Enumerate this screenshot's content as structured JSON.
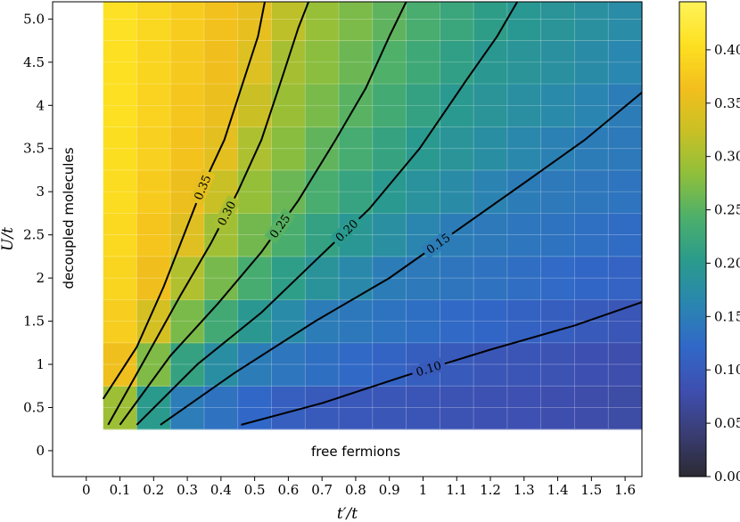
{
  "chart_data": {
    "type": "heatmap",
    "title": "",
    "xlabel": "t′/t",
    "ylabel": "U/t",
    "xlim": [
      -0.1,
      1.65
    ],
    "ylim": [
      -0.3,
      5.2
    ],
    "x_ticks": [
      "0",
      "0.1",
      "0.2",
      "0.3",
      "0.4",
      "0.5",
      "0.6",
      "0.7",
      "0.8",
      "0.9",
      "1",
      "1.1",
      "1.2",
      "1.3",
      "1.4",
      "1.5",
      "1.6"
    ],
    "y_ticks": [
      "0",
      "0.5",
      "1",
      "1.5",
      "2",
      "2.5",
      "3",
      "3.5",
      "4",
      "4.5",
      "5.0"
    ],
    "x_range": [
      0.05,
      1.65
    ],
    "y_range": [
      0.25,
      5.25
    ],
    "x_cells": 16,
    "y_cells": 10,
    "grid": true,
    "colorbar": {
      "min": 0.0,
      "max": 0.445,
      "ticks": [
        "0.00",
        "0.05",
        "0.10",
        "0.15",
        "0.20",
        "0.25",
        "0.30",
        "0.35",
        "0.40"
      ],
      "colormap": "cividis-viridis",
      "stops": [
        "#2b2a33",
        "#3a3d74",
        "#3e4fb0",
        "#3168c8",
        "#2a86b0",
        "#2a9b8c",
        "#4caf6b",
        "#8fbf3b",
        "#c9c025",
        "#f3bf1d",
        "#fde021",
        "#fff35a"
      ]
    },
    "contours": [
      {
        "level": "0.35",
        "points": [
          [
            0.05,
            0.6
          ],
          [
            0.15,
            1.2
          ],
          [
            0.23,
            1.9
          ],
          [
            0.29,
            2.5
          ],
          [
            0.35,
            3.1
          ],
          [
            0.41,
            3.6
          ],
          [
            0.46,
            4.2
          ],
          [
            0.51,
            4.8
          ],
          [
            0.53,
            5.25
          ]
        ]
      },
      {
        "level": "0.30",
        "points": [
          [
            0.065,
            0.3
          ],
          [
            0.18,
            1.1
          ],
          [
            0.28,
            1.8
          ],
          [
            0.37,
            2.4
          ],
          [
            0.45,
            3.0
          ],
          [
            0.52,
            3.6
          ],
          [
            0.58,
            4.3
          ],
          [
            0.63,
            4.9
          ],
          [
            0.66,
            5.25
          ]
        ]
      },
      {
        "level": "0.25",
        "points": [
          [
            0.1,
            0.3
          ],
          [
            0.25,
            1.1
          ],
          [
            0.39,
            1.7
          ],
          [
            0.52,
            2.3
          ],
          [
            0.63,
            2.9
          ],
          [
            0.74,
            3.6
          ],
          [
            0.83,
            4.2
          ],
          [
            0.9,
            4.8
          ],
          [
            0.95,
            5.25
          ]
        ]
      },
      {
        "level": "0.20",
        "points": [
          [
            0.15,
            0.3
          ],
          [
            0.33,
            1.0
          ],
          [
            0.52,
            1.6
          ],
          [
            0.68,
            2.2
          ],
          [
            0.84,
            2.8
          ],
          [
            0.99,
            3.5
          ],
          [
            1.13,
            4.3
          ],
          [
            1.22,
            4.8
          ],
          [
            1.28,
            5.25
          ]
        ]
      },
      {
        "level": "0.15",
        "points": [
          [
            0.22,
            0.3
          ],
          [
            0.44,
            0.9
          ],
          [
            0.68,
            1.5
          ],
          [
            0.9,
            2.0
          ],
          [
            1.1,
            2.55
          ],
          [
            1.3,
            3.1
          ],
          [
            1.48,
            3.6
          ],
          [
            1.65,
            4.15
          ]
        ]
      },
      {
        "level": "0.10",
        "points": [
          [
            0.46,
            0.3
          ],
          [
            0.7,
            0.55
          ],
          [
            0.95,
            0.87
          ],
          [
            1.2,
            1.17
          ],
          [
            1.45,
            1.45
          ],
          [
            1.65,
            1.72
          ]
        ]
      }
    ],
    "annotations": [
      "decoupled molecules",
      "free fermions"
    ]
  }
}
